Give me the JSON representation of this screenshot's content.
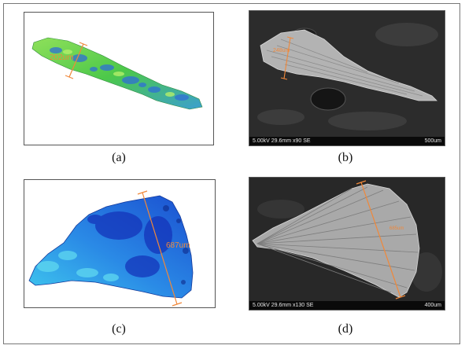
{
  "panels": {
    "a": {
      "caption": "(a)",
      "measurement": "202um",
      "colors": {
        "surface_green": "#5fd04a",
        "surface_blue": "#2f7fd8",
        "dim_line": "#f0883a"
      }
    },
    "b": {
      "caption": "(b)",
      "measurement": "248um",
      "sem_info": "5.00kV 29.6mm x90 SE",
      "scale_label": "500um",
      "colors": {
        "background": "#2a2a2a",
        "dim_line": "#f0883a"
      }
    },
    "c": {
      "caption": "(c)",
      "measurement": "687um",
      "colors": {
        "surface_blue": "#1f6fe0",
        "surface_cyan": "#35c3e8",
        "dim_line": "#f0883a"
      }
    },
    "d": {
      "caption": "(d)",
      "measurement": "685um",
      "sem_info": "5.00kV 29.6mm x130 SE",
      "scale_label": "400um",
      "colors": {
        "background": "#262626",
        "dim_line": "#f0883a"
      }
    }
  }
}
